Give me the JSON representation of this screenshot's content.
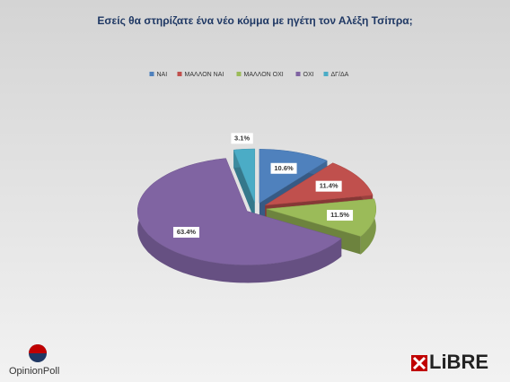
{
  "chart_data": {
    "type": "pie",
    "title": "Εσείς θα στηρίζατε  ένα νέο κόμμα με ηγέτη τον Αλέξη Τσίπρα;",
    "categories": [
      "ΝΑΙ",
      "ΜΑΛΛΟΝ ΝΑΙ",
      "ΜΑΛΛΟΝ ΟΧΙ",
      "ΟΧΙ",
      "ΔΓ/ΔΑ"
    ],
    "values": [
      10.6,
      11.4,
      11.5,
      63.4,
      3.1
    ],
    "value_labels": [
      "10.6%",
      "11.4%",
      "11.5%",
      "63.4%",
      "3.1%"
    ],
    "colors": [
      "#4f81bd",
      "#c0504d",
      "#9bbb59",
      "#8064a2",
      "#4bacc6"
    ],
    "legend": "top"
  },
  "logos": [
    "OpinionPoll",
    "LiBRE"
  ]
}
